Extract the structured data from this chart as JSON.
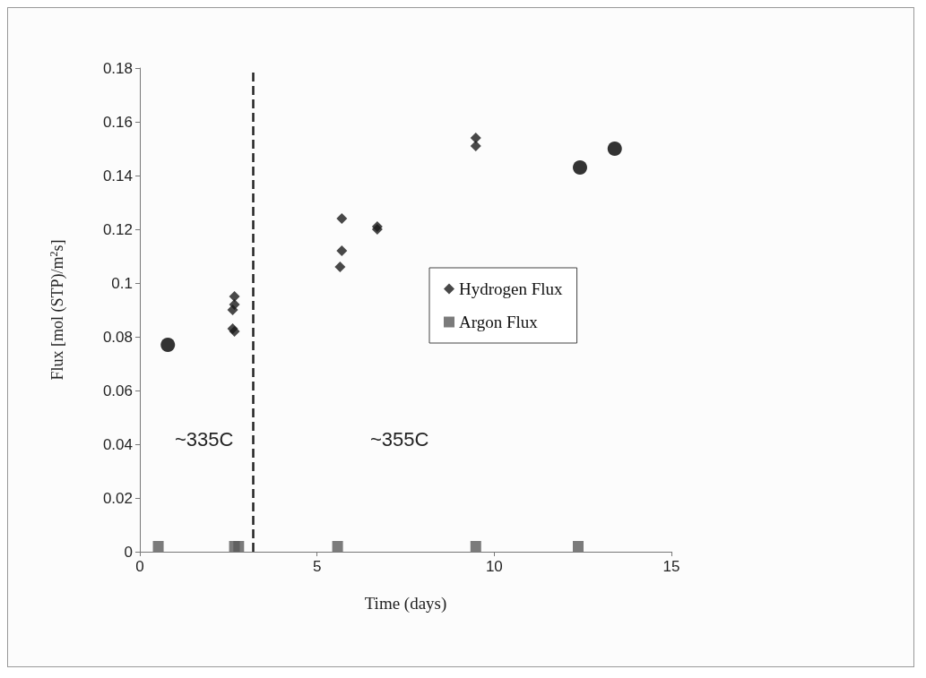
{
  "chart_data": {
    "type": "scatter",
    "xlabel": "Time (days)",
    "ylabel": "Flux [mol (STP)/m$^{2}$s]",
    "xlim": [
      0,
      15
    ],
    "xticks": [
      0,
      5,
      10,
      15
    ],
    "ylim": [
      0,
      0.18
    ],
    "yticks": [
      0,
      0.02,
      0.04,
      0.06,
      0.08,
      0.1,
      0.12,
      0.14,
      0.16,
      0.18
    ],
    "grid": false,
    "legend": "right",
    "series": [
      {
        "name": "Hydrogen Flux",
        "color": "#1a1a1a",
        "marker": "diamond",
        "x": [
          2.67,
          2.67,
          2.62,
          2.62,
          2.67,
          5.7,
          5.7,
          5.65,
          6.7,
          6.7,
          9.48,
          9.48
        ],
        "values": [
          0.095,
          0.092,
          0.09,
          0.083,
          0.082,
          0.124,
          0.112,
          0.106,
          0.121,
          0.12,
          0.154,
          0.151
        ]
      },
      {
        "name": "Argon Flux",
        "color": "#5a5a5a",
        "marker": "square",
        "x": [
          0.52,
          2.67,
          2.79,
          5.58,
          9.48,
          12.37
        ],
        "values": [
          0.002,
          0.002,
          0.002,
          0.002,
          0.002,
          0.002
        ]
      },
      {
        "color": "#000000",
        "marker": "circle",
        "x": [
          0.79,
          12.42,
          13.4
        ],
        "values": [
          0.077,
          0.143,
          0.15
        ]
      }
    ],
    "ref_lines": [
      {
        "axis": "x",
        "value": 3.19,
        "line_style": "dashed",
        "color": "#222222"
      }
    ],
    "annotations": [
      "~335C",
      "~355C"
    ]
  }
}
